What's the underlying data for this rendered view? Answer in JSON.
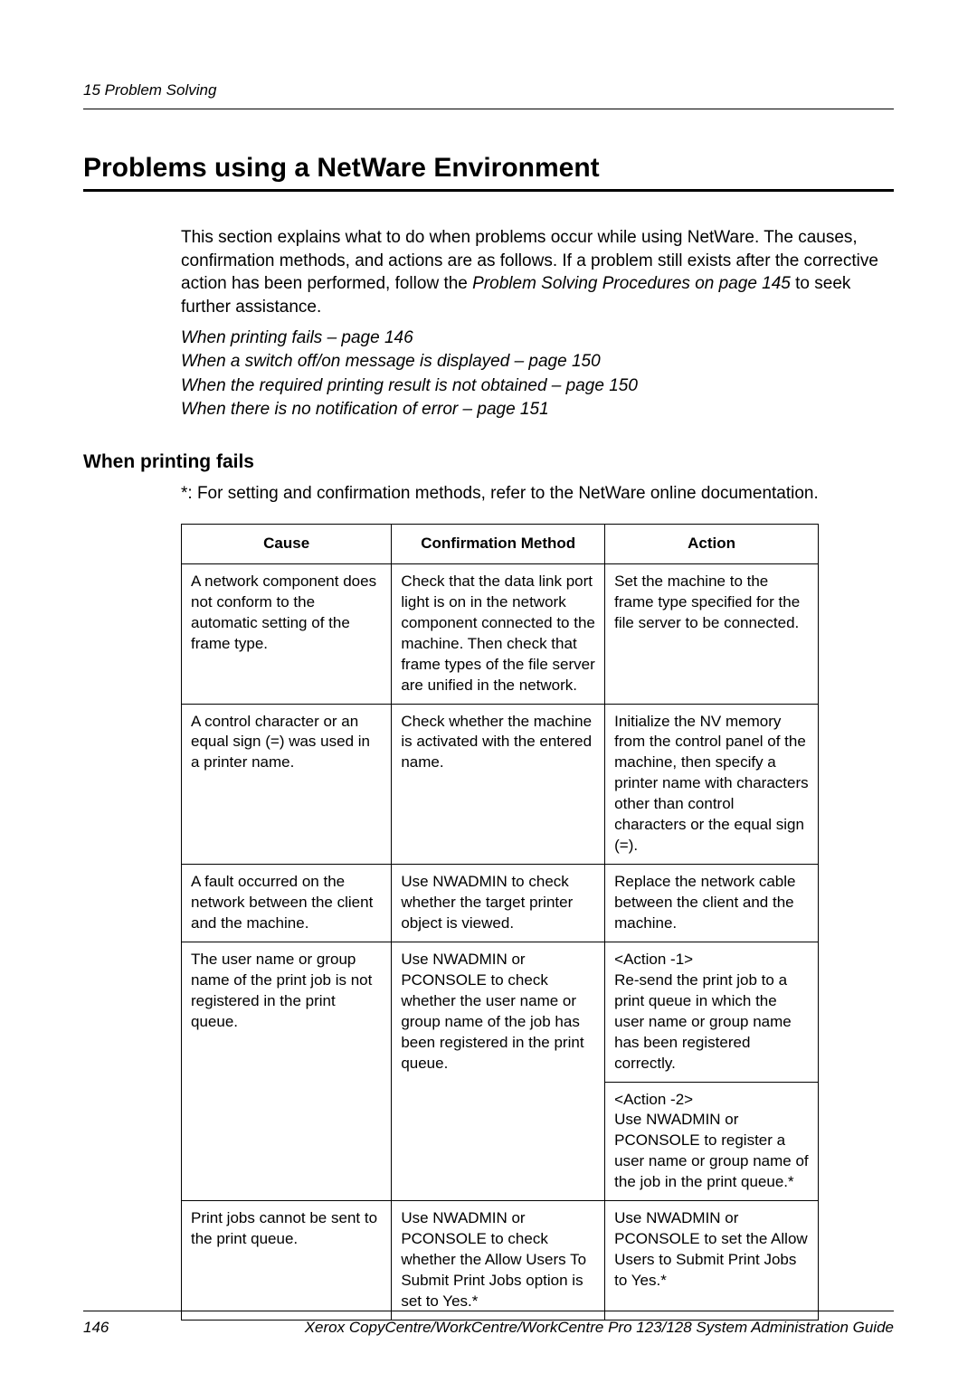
{
  "header": {
    "section_label": "15  Problem Solving"
  },
  "heading": "Problems using a NetWare Environment",
  "intro": {
    "text_before_italic": "This section explains what to do when problems occur while using NetWare. The causes, confirmation methods, and actions are as follows. If a problem still exists after the corrective action has been performed, follow the ",
    "italic_ref": "Problem Solving Procedures on page 145",
    "text_after_italic": " to seek further assistance."
  },
  "ref_links": [
    "When printing fails – page 146",
    "When a switch off/on message is displayed – page 150",
    "When the required printing result is not obtained – page 150",
    "When there is no notification of error – page 151"
  ],
  "subheading": "When printing fails",
  "note": "*: For setting and confirmation methods, refer to the NetWare online documentation.",
  "table": {
    "headers": {
      "cause": "Cause",
      "confirm": "Confirmation Method",
      "action": "Action"
    },
    "rows": [
      {
        "cause": "A network component does not conform to the automatic setting of the frame type.",
        "confirm": "Check that the data link port light is on in the network component connected to the machine. Then check that frame types of the file server are unified in the network.",
        "action": "Set the machine to the frame type specified for the file server to be connected."
      },
      {
        "cause": "A control character or an equal sign (=) was used in a printer name.",
        "confirm": "Check whether the machine is activated with the entered name.",
        "action": "Initialize the NV memory from the control panel of the machine, then specify a printer name with characters other than control characters or the equal sign (=)."
      },
      {
        "cause": "A fault occurred on the network between the client and the machine.",
        "confirm": "Use NWADMIN to check whether the target printer object is viewed.",
        "action": "Replace the network cable between the client and the machine."
      },
      {
        "cause": "The user name or group name of the print job is not registered in the print queue.",
        "confirm": "Use NWADMIN or PCONSOLE to check whether the user name or group name of the job has been registered in the print queue.",
        "action1": "<Action -1>\nRe-send the print job to a print queue in which the user name or group name has been registered correctly.",
        "action2": "<Action -2>\nUse NWADMIN or PCONSOLE to register a user name or group name of the job in the print queue.*"
      },
      {
        "cause": "Print jobs cannot be sent to the print queue.",
        "confirm": "Use NWADMIN or PCONSOLE to check whether the Allow Users To Submit Print Jobs option is set to Yes.*",
        "action": "Use NWADMIN or PCONSOLE to set the Allow Users to Submit Print Jobs to Yes.*"
      }
    ]
  },
  "footer": {
    "page_num": "146",
    "doc_title": "Xerox CopyCentre/WorkCentre/WorkCentre Pro 123/128 System Administration Guide"
  }
}
